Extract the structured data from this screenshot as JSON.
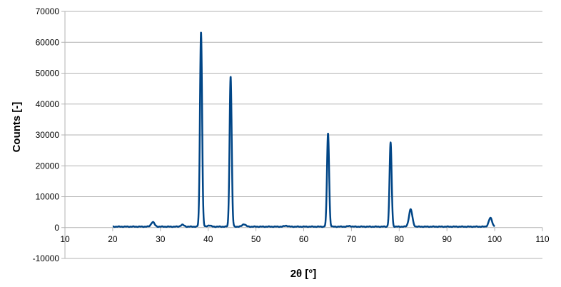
{
  "chart_data": {
    "type": "line",
    "xlabel": "2θ [°]",
    "ylabel": "Counts [-]",
    "xlim": [
      10,
      110
    ],
    "ylim": [
      -10000,
      70000
    ],
    "x_ticks": [
      10,
      20,
      30,
      40,
      50,
      60,
      70,
      80,
      90,
      100,
      110
    ],
    "y_ticks": [
      -10000,
      0,
      10000,
      20000,
      30000,
      40000,
      50000,
      60000,
      70000
    ],
    "grid": "horizontal",
    "legend": "none",
    "x_range_data": [
      20,
      100
    ],
    "baseline": 300,
    "peaks": [
      {
        "x": 28.4,
        "y": 1800
      },
      {
        "x": 34.6,
        "y": 900
      },
      {
        "x": 38.5,
        "y": 63500
      },
      {
        "x": 40.2,
        "y": 700
      },
      {
        "x": 44.7,
        "y": 49000
      },
      {
        "x": 47.5,
        "y": 1100
      },
      {
        "x": 56.3,
        "y": 600
      },
      {
        "x": 65.1,
        "y": 30600
      },
      {
        "x": 69.6,
        "y": 500
      },
      {
        "x": 78.2,
        "y": 27500
      },
      {
        "x": 82.4,
        "y": 5900
      },
      {
        "x": 99.1,
        "y": 3100
      }
    ],
    "series_color": "#004586"
  }
}
